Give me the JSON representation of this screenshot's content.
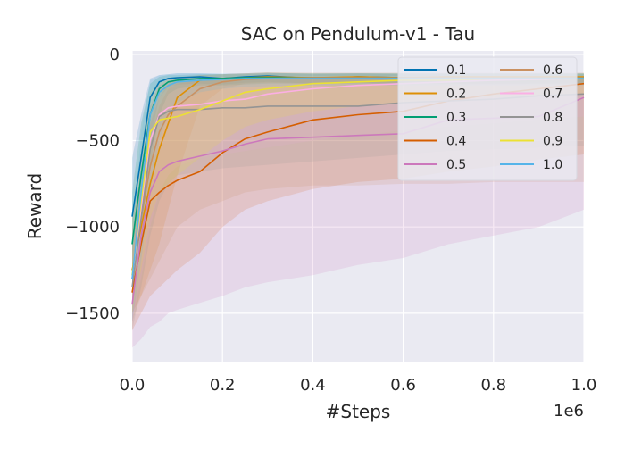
{
  "chart_data": {
    "type": "line",
    "title": "SAC on Pendulum-v1 - Tau",
    "xlabel": "#Steps",
    "ylabel": "Reward",
    "x_scale_label": "1e6",
    "xlim": [
      0,
      1000000
    ],
    "ylim": [
      -1780,
      20
    ],
    "x_ticks": [
      0,
      200000,
      400000,
      600000,
      800000,
      1000000
    ],
    "x_tick_labels": [
      "0.0",
      "0.2",
      "0.4",
      "0.6",
      "0.8",
      "1.0"
    ],
    "y_ticks": [
      0,
      -500,
      -1000,
      -1500
    ],
    "y_tick_labels": [
      "0",
      "−500",
      "−1000",
      "−1500"
    ],
    "grid": true,
    "legend_position": "top-right",
    "legend_columns": 2,
    "x": [
      0,
      20000,
      40000,
      60000,
      80000,
      100000,
      150000,
      200000,
      250000,
      300000,
      400000,
      500000,
      600000,
      700000,
      800000,
      900000,
      1000000
    ],
    "series": [
      {
        "name": "0.1",
        "color": "#0173b2",
        "values": [
          -940,
          -600,
          -250,
          -160,
          -140,
          -135,
          -130,
          -140,
          -130,
          -125,
          -140,
          -130,
          -135,
          -135,
          -140,
          -135,
          -135
        ],
        "lower": [
          -1150,
          -900,
          -500,
          -250,
          -190,
          -175,
          -170,
          -175,
          -165,
          -160,
          -170,
          -165,
          -170,
          -170,
          -175,
          -170,
          -170
        ],
        "upper": [
          -600,
          -350,
          -140,
          -120,
          -115,
          -110,
          -110,
          -115,
          -110,
          -105,
          -115,
          -110,
          -115,
          -115,
          -115,
          -115,
          -115
        ]
      },
      {
        "name": "0.2",
        "color": "#de8f05",
        "values": [
          -1250,
          -1000,
          -750,
          -550,
          -400,
          -250,
          -150,
          -140,
          -135,
          -130,
          -135,
          -130,
          -135,
          -130,
          -130,
          -130,
          -130
        ],
        "lower": [
          -1500,
          -1400,
          -1250,
          -1100,
          -900,
          -700,
          -300,
          -200,
          -170,
          -165,
          -170,
          -165,
          -170,
          -165,
          -165,
          -165,
          -165
        ],
        "upper": [
          -950,
          -700,
          -400,
          -250,
          -170,
          -140,
          -120,
          -115,
          -110,
          -105,
          -110,
          -110,
          -110,
          -110,
          -110,
          -110,
          -110
        ]
      },
      {
        "name": "0.3",
        "color": "#029e73",
        "values": [
          -1100,
          -700,
          -350,
          -200,
          -160,
          -150,
          -140,
          -140,
          -135,
          -135,
          -135,
          -135,
          -135,
          -135,
          -135,
          -135,
          -135
        ],
        "lower": [
          -1350,
          -1000,
          -650,
          -350,
          -230,
          -200,
          -180,
          -180,
          -175,
          -170,
          -170,
          -170,
          -170,
          -170,
          -170,
          -170,
          -170
        ],
        "upper": [
          -800,
          -400,
          -170,
          -130,
          -120,
          -120,
          -115,
          -115,
          -115,
          -110,
          -110,
          -110,
          -110,
          -110,
          -110,
          -110,
          -110
        ]
      },
      {
        "name": "0.4",
        "color": "#d55e00",
        "values": [
          -1380,
          -1100,
          -850,
          -800,
          -760,
          -730,
          -680,
          -570,
          -490,
          -450,
          -380,
          -350,
          -330,
          -270,
          -230,
          -200,
          -170
        ],
        "lower": [
          -1600,
          -1500,
          -1400,
          -1350,
          -1300,
          -1250,
          -1150,
          -1000,
          -900,
          -850,
          -780,
          -740,
          -720,
          -680,
          -650,
          -610,
          -580
        ],
        "upper": [
          -1150,
          -850,
          -500,
          -300,
          -200,
          -170,
          -150,
          -145,
          -140,
          -135,
          -130,
          -130,
          -130,
          -130,
          -130,
          -130,
          -130
        ]
      },
      {
        "name": "0.5",
        "color": "#cc78bc",
        "values": [
          -1450,
          -1050,
          -800,
          -680,
          -640,
          -620,
          -590,
          -560,
          -520,
          -490,
          -480,
          -470,
          -460,
          -380,
          -370,
          -360,
          -250
        ],
        "lower": [
          -1700,
          -1650,
          -1580,
          -1550,
          -1500,
          -1480,
          -1440,
          -1400,
          -1350,
          -1320,
          -1280,
          -1220,
          -1180,
          -1100,
          -1050,
          -1000,
          -900
        ],
        "upper": [
          -1200,
          -700,
          -400,
          -250,
          -180,
          -160,
          -150,
          -145,
          -140,
          -140,
          -140,
          -135,
          -135,
          -135,
          -135,
          -135,
          -135
        ]
      },
      {
        "name": "0.6",
        "color": "#ca9161",
        "values": [
          -1300,
          -950,
          -650,
          -450,
          -350,
          -300,
          -200,
          -160,
          -145,
          -140,
          -135,
          -135,
          -135,
          -135,
          -135,
          -135,
          -135
        ],
        "lower": [
          -1550,
          -1400,
          -1300,
          -1200,
          -1100,
          -1000,
          -900,
          -850,
          -800,
          -780,
          -760,
          -760,
          -750,
          -750,
          -740,
          -740,
          -740
        ],
        "upper": [
          -1050,
          -650,
          -300,
          -180,
          -140,
          -130,
          -120,
          -115,
          -110,
          -105,
          -105,
          -105,
          -105,
          -105,
          -105,
          -105,
          -105
        ]
      },
      {
        "name": "0.7",
        "color": "#fbafe4",
        "values": [
          -1300,
          -900,
          -500,
          -350,
          -310,
          -300,
          -290,
          -270,
          -260,
          -230,
          -200,
          -180,
          -170,
          -160,
          -150,
          -145,
          -140
        ],
        "lower": [
          -1550,
          -1300,
          -1000,
          -800,
          -700,
          -650,
          -600,
          -580,
          -560,
          -540,
          -500,
          -470,
          -440,
          -420,
          -400,
          -380,
          -360
        ],
        "upper": [
          -1050,
          -600,
          -250,
          -170,
          -150,
          -145,
          -140,
          -135,
          -130,
          -130,
          -125,
          -125,
          -125,
          -125,
          -125,
          -125,
          -125
        ]
      },
      {
        "name": "0.8",
        "color": "#949494",
        "values": [
          -1350,
          -950,
          -550,
          -360,
          -330,
          -320,
          -320,
          -310,
          -310,
          -300,
          -300,
          -300,
          -280,
          -270,
          -260,
          -240,
          -230
        ],
        "lower": [
          -1600,
          -1350,
          -1050,
          -850,
          -750,
          -700,
          -680,
          -660,
          -650,
          -640,
          -620,
          -600,
          -580,
          -560,
          -550,
          -540,
          -530
        ],
        "upper": [
          -1100,
          -650,
          -300,
          -180,
          -160,
          -155,
          -150,
          -150,
          -145,
          -140,
          -140,
          -140,
          -140,
          -140,
          -140,
          -140,
          -140
        ]
      },
      {
        "name": "0.9",
        "color": "#ece133",
        "values": [
          -1280,
          -850,
          -450,
          -380,
          -370,
          -360,
          -320,
          -270,
          -220,
          -200,
          -170,
          -160,
          -150,
          -150,
          -140,
          -140,
          -140
        ],
        "lower": [
          -1500,
          -1250,
          -950,
          -800,
          -750,
          -700,
          -600,
          -500,
          -420,
          -380,
          -330,
          -300,
          -280,
          -260,
          -250,
          -240,
          -230
        ],
        "upper": [
          -1050,
          -550,
          -220,
          -160,
          -150,
          -145,
          -140,
          -135,
          -130,
          -130,
          -125,
          -125,
          -125,
          -125,
          -125,
          -125,
          -125
        ]
      },
      {
        "name": "1.0",
        "color": "#56b4e9",
        "values": [
          -1300,
          -800,
          -350,
          -220,
          -180,
          -160,
          -150,
          -145,
          -140,
          -140,
          -140,
          -140,
          -140,
          -140,
          -140,
          -140,
          -140
        ],
        "lower": [
          -1550,
          -1200,
          -800,
          -500,
          -350,
          -280,
          -220,
          -200,
          -190,
          -185,
          -180,
          -180,
          -180,
          -180,
          -180,
          -180,
          -180
        ],
        "upper": [
          -1050,
          -450,
          -150,
          -120,
          -115,
          -110,
          -110,
          -110,
          -110,
          -110,
          -110,
          -110,
          -110,
          -110,
          -110,
          -110,
          -110
        ]
      }
    ]
  }
}
